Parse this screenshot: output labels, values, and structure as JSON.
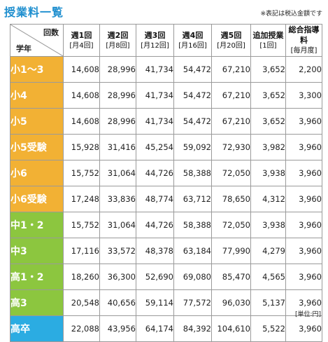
{
  "title": "授業料一覧",
  "note": "※表記は税込金額です",
  "header": {
    "corner_top": "回数",
    "corner_bottom": "学年",
    "columns": [
      {
        "label": "週1回",
        "sub": "[月4回]"
      },
      {
        "label": "週2回",
        "sub": "[月8回]"
      },
      {
        "label": "週3回",
        "sub": "[月12回]"
      },
      {
        "label": "週4回",
        "sub": "[月16回]"
      },
      {
        "label": "週5回",
        "sub": "[月20回]"
      },
      {
        "label": "追加授業",
        "sub": "[1回]"
      },
      {
        "label": "総合指導料",
        "sub": "[毎月度]"
      }
    ]
  },
  "colors": {
    "elementary": "#f2b134",
    "middle": "#8cc63f",
    "high": "#2bace2"
  },
  "rows": [
    {
      "grade": "小1〜3",
      "group": "elementary",
      "values": [
        "14,608",
        "28,996",
        "41,734",
        "54,472",
        "67,210",
        "3,652",
        "2,200"
      ]
    },
    {
      "grade": "小4",
      "group": "elementary",
      "values": [
        "14,608",
        "28,996",
        "41,734",
        "54,472",
        "67,210",
        "3,652",
        "3,300"
      ]
    },
    {
      "grade": "小5",
      "group": "elementary",
      "values": [
        "14,608",
        "28,996",
        "41,734",
        "54,472",
        "67,210",
        "3,652",
        "3,960"
      ]
    },
    {
      "grade": "小5受験",
      "group": "elementary",
      "values": [
        "15,928",
        "31,416",
        "45,254",
        "59,092",
        "72,930",
        "3,982",
        "3,960"
      ]
    },
    {
      "grade": "小6",
      "group": "elementary",
      "values": [
        "15,752",
        "31,064",
        "44,726",
        "58,388",
        "72,050",
        "3,938",
        "3,960"
      ]
    },
    {
      "grade": "小6受験",
      "group": "elementary",
      "values": [
        "17,248",
        "33,836",
        "48,774",
        "63,712",
        "78,650",
        "4,312",
        "3,960"
      ]
    },
    {
      "grade": "中1・2",
      "group": "middle",
      "values": [
        "15,752",
        "31,064",
        "44,726",
        "58,388",
        "72,050",
        "3,938",
        "3,960"
      ]
    },
    {
      "grade": "中3",
      "group": "middle",
      "values": [
        "17,116",
        "33,572",
        "48,378",
        "63,184",
        "77,990",
        "4,279",
        "3,960"
      ]
    },
    {
      "grade": "高1・2",
      "group": "middle",
      "values": [
        "18,260",
        "36,300",
        "52,690",
        "69,080",
        "85,470",
        "4,565",
        "3,960"
      ]
    },
    {
      "grade": "高3",
      "group": "middle",
      "values": [
        "20,548",
        "40,656",
        "59,114",
        "77,572",
        "96,030",
        "5,137",
        "3,960"
      ]
    },
    {
      "grade": "高卒",
      "group": "high",
      "values": [
        "22,088",
        "43,956",
        "64,174",
        "84,392",
        "104,610",
        "5,522",
        "3,960"
      ]
    }
  ],
  "unit": "[単位:円]"
}
